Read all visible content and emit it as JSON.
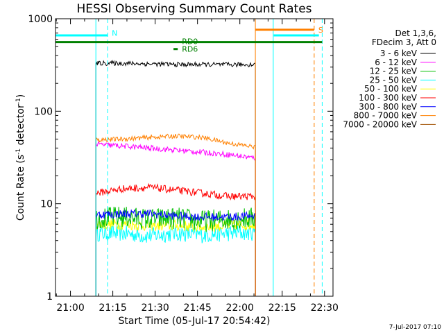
{
  "chart_data": {
    "type": "line",
    "title": "HESSI Observing Summary Count Rates",
    "xlabel": "Start Time (05-Jul-17 20:54:42)",
    "ylabel_main": "Count Rate (s",
    "ylabel_sup1": "-1",
    "ylabel_mid": " detector",
    "ylabel_sup2": "-1",
    "ylabel_end": ")",
    "y_scale": "log",
    "ylim": [
      1,
      1000
    ],
    "xlim": [
      "20:54:42",
      "22:33:00"
    ],
    "x_ticks": [
      "21:00",
      "21:15",
      "21:30",
      "21:45",
      "22:00",
      "22:15",
      "22:30"
    ],
    "y_ticks": [
      "1",
      "10",
      "100",
      "1000"
    ],
    "legend_header": [
      "Det 1,3,6,",
      "FDecim 3, Att 0"
    ],
    "legend_position": "right",
    "timestamp": "7-Jul-2017 07:10",
    "data_start": "21:09:00",
    "data_end": "22:05:30",
    "series": [
      {
        "name": "3 - 6 keV",
        "color": "#000000",
        "level": [
          330,
          330,
          325,
          320,
          320,
          318,
          320
        ],
        "noise": 0.025
      },
      {
        "name": "6 - 12 keV",
        "color": "#ff00ff",
        "level": [
          44,
          42,
          40,
          38,
          36,
          34,
          31
        ],
        "noise": 0.03
      },
      {
        "name": "12 - 25 keV",
        "color": "#00c000",
        "level": [
          7.0,
          7.2,
          6.8,
          7.0,
          6.5,
          6.8,
          7.0
        ],
        "noise": 0.12
      },
      {
        "name": "25 - 50 keV",
        "color": "#00ffff",
        "level": [
          4.8,
          4.8,
          4.5,
          4.8,
          4.6,
          4.8,
          4.9
        ],
        "noise": 0.09
      },
      {
        "name": "50 - 100 keV",
        "color": "#ffff00",
        "level": [
          6.0,
          6.0,
          5.8,
          5.8,
          5.6,
          5.8,
          6.0
        ],
        "noise": 0.06
      },
      {
        "name": "100 - 300 keV",
        "color": "#ff0000",
        "level": [
          13,
          14.5,
          15,
          14,
          13,
          12,
          12
        ],
        "noise": 0.04
      },
      {
        "name": "300 - 800 keV",
        "color": "#0000ff",
        "level": [
          7.6,
          7.8,
          7.8,
          7.4,
          7.2,
          7.2,
          7.4
        ],
        "noise": 0.045
      },
      {
        "name": "800 - 7000 keV",
        "color": "#ff8000",
        "level": [
          49,
          50,
          52,
          54,
          52,
          45,
          41
        ],
        "noise": 0.025
      },
      {
        "name": "7000 - 20000 keV",
        "color": "#a05000"
      }
    ],
    "attenuator_bars": [
      {
        "label": "",
        "color": "#00ffff",
        "value": 660,
        "start": "20:54:42",
        "end": "21:13:10"
      },
      {
        "label": "N",
        "color": "#00ffff",
        "value": 700,
        "start": "21:13:10",
        "end": "21:13:10"
      },
      {
        "label": "",
        "color": "#00ffff",
        "value": 660,
        "start": "22:12:00",
        "end": "22:28:00"
      },
      {
        "label": "S",
        "color": "#ff8000",
        "value": 760,
        "start": "22:05:30",
        "end": "22:26:20"
      }
    ],
    "decimation_bars": [
      {
        "label": "",
        "color": "#008000",
        "value": 560,
        "start": "20:54:42",
        "end": "22:29:10"
      },
      {
        "label": "RD0",
        "color": "#008000",
        "value": 570,
        "start": "21:38:00",
        "end": "21:38:00"
      },
      {
        "label": "RD6",
        "color": "#008000",
        "value": 470,
        "start": "21:36:30",
        "end": "21:38:00"
      }
    ],
    "vertical_lines": [
      {
        "time": "20:54:42",
        "color": "#00ffff",
        "style": "solid"
      },
      {
        "time": "21:09:00",
        "color": "#00ffff",
        "style": "solid"
      },
      {
        "time": "21:13:10",
        "color": "#00ffff",
        "style": "dashed"
      },
      {
        "time": "22:05:30",
        "color": "#ff8000",
        "style": "solid"
      },
      {
        "time": "22:11:50",
        "color": "#00ffff",
        "style": "solid"
      },
      {
        "time": "22:26:20",
        "color": "#ff8000",
        "style": "dashed"
      },
      {
        "time": "22:29:10",
        "color": "#00ffff",
        "style": "dashed"
      }
    ]
  }
}
